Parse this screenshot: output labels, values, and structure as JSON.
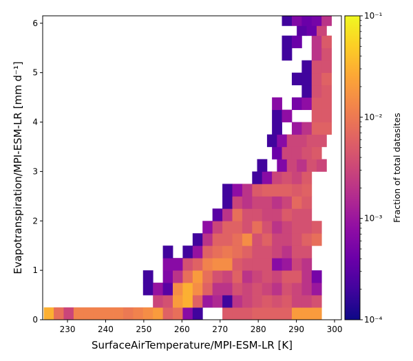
{
  "chart_data": {
    "type": "heatmap",
    "xlabel": "SurfaceAirTemperature/MPI-ESM-LR [K]",
    "ylabel": "Evapotranspiration/MPI-ESM-LR [mm d⁻¹]",
    "colorbar_label": "Fraction of total datasites",
    "xlim": [
      223.5,
      301.8
    ],
    "ylim": [
      0,
      6.15
    ],
    "x_ticks": [
      "230",
      "240",
      "250",
      "260",
      "270",
      "280",
      "290",
      "300"
    ],
    "y_ticks": [
      "0",
      "1",
      "2",
      "3",
      "4",
      "5",
      "6"
    ],
    "colorbar_scale": "log",
    "colorbar_range": [
      0.0001,
      0.1
    ],
    "colorbar_ticks": [
      {
        "value": 0.1,
        "label": "10⁻¹"
      },
      {
        "value": 0.01,
        "label": "10⁻²"
      },
      {
        "value": 0.001,
        "label": "10⁻³"
      },
      {
        "value": 0.0001,
        "label": "10⁻⁴"
      }
    ],
    "colormap": "plasma",
    "bin_width_x": 2.6,
    "bin_height_y": 0.25,
    "rows": [
      {
        "y": 0.125,
        "x0": 223.8,
        "values": [
          0.03,
          0.008,
          0.003,
          0.012,
          0.012,
          0.012,
          0.012,
          0.012,
          0.01,
          0.012,
          0.015,
          0.02,
          0.006,
          0.008,
          0.0007,
          0.0002,
          null,
          null,
          0.005,
          0.005,
          0.005,
          0.006,
          0.006,
          0.006,
          0.006,
          0.02,
          0.02,
          0.02
        ]
      },
      {
        "y": 0.375,
        "x0": 252.4,
        "values": [
          0.003,
          0.004,
          0.02,
          0.03,
          0.006,
          0.001,
          0.0015,
          0.0002,
          0.002,
          0.003,
          0.004,
          0.005,
          0.004,
          0.005,
          0.003,
          0.003,
          0.004
        ]
      },
      {
        "y": 0.625,
        "x0": 249.8,
        "values": [
          0.0002,
          0.0009,
          0.0003,
          0.015,
          0.03,
          0.015,
          0.006,
          0.002,
          0.002,
          0.004,
          0.003,
          0.004,
          0.003,
          0.002,
          0.004,
          0.003,
          0.002,
          0.001
        ]
      },
      {
        "y": 0.875,
        "x0": 249.8,
        "values": [
          0.0002,
          null,
          0.0006,
          0.002,
          0.008,
          0.02,
          0.008,
          0.004,
          0.003,
          0.006,
          0.002,
          0.003,
          0.004,
          0.003,
          0.005,
          0.005,
          0.002,
          0.0005
        ]
      },
      {
        "y": 1.125,
        "x0": 255.0,
        "values": [
          0.0007,
          0.0007,
          0.004,
          0.006,
          0.012,
          0.015,
          0.015,
          0.005,
          0.004,
          0.004,
          0.004,
          0.0007,
          0.001,
          0.003,
          0.002
        ]
      },
      {
        "y": 1.375,
        "x0": 255.0,
        "values": [
          0.0002,
          null,
          0.0002,
          0.0009,
          0.006,
          0.008,
          0.01,
          0.008,
          0.006,
          0.004,
          0.004,
          0.003,
          0.002,
          0.004,
          0.004
        ]
      },
      {
        "y": 1.625,
        "x0": 262.8,
        "values": [
          0.0002,
          0.002,
          0.006,
          0.006,
          0.008,
          0.015,
          0.004,
          0.006,
          0.003,
          0.003,
          0.004,
          0.006,
          0.008
        ]
      },
      {
        "y": 1.875,
        "x0": 265.4,
        "values": [
          0.0008,
          0.003,
          0.006,
          0.006,
          0.004,
          0.008,
          0.004,
          0.002,
          0.003,
          0.004,
          0.004,
          0.005
        ]
      },
      {
        "y": 2.125,
        "x0": 268.0,
        "values": [
          0.0003,
          0.002,
          0.008,
          0.004,
          0.004,
          0.003,
          0.003,
          0.005,
          0.004,
          0.004
        ]
      },
      {
        "y": 2.375,
        "x0": 270.6,
        "values": [
          0.0002,
          0.003,
          0.002,
          0.003,
          0.003,
          0.002,
          0.003,
          0.007,
          0.005
        ]
      },
      {
        "y": 2.625,
        "x0": 270.6,
        "values": [
          0.0002,
          0.0008,
          0.002,
          0.005,
          0.006,
          0.006,
          0.006,
          0.005,
          0.006
        ]
      },
      {
        "y": 2.875,
        "x0": 278.4,
        "values": [
          0.0002,
          0.0007,
          0.003,
          0.004,
          0.003,
          0.005
        ]
      },
      {
        "y": 3.125,
        "x0": 279.7,
        "values": [
          0.0002,
          null,
          0.0006,
          0.003,
          0.002,
          0.004,
          0.003
        ]
      },
      {
        "y": 3.375,
        "x0": 283.6,
        "values": [
          0.0004,
          0.003,
          0.003,
          0.004,
          0.005
        ]
      },
      {
        "y": 3.625,
        "x0": 282.3,
        "values": [
          0.0002,
          0.0007,
          0.003,
          0.003,
          0.004,
          0.004
        ]
      },
      {
        "y": 3.875,
        "x0": 283.6,
        "values": [
          0.0002,
          null,
          0.001,
          0.002,
          0.006,
          0.006
        ]
      },
      {
        "y": 4.125,
        "x0": 283.6,
        "values": [
          0.0002,
          0.0008,
          null,
          null,
          0.005,
          0.005
        ]
      },
      {
        "y": 4.375,
        "x0": 283.6,
        "values": [
          0.0007,
          null,
          0.0005,
          0.0008,
          0.005,
          0.005
        ]
      },
      {
        "y": 4.625,
        "x0": 291.4,
        "values": [
          0.0002,
          0.004,
          0.005
        ]
      },
      {
        "y": 4.875,
        "x0": 288.8,
        "values": [
          0.0002,
          0.0002,
          0.004,
          0.006
        ]
      },
      {
        "y": 5.125,
        "x0": 291.4,
        "values": [
          0.0002,
          0.004,
          0.004
        ]
      },
      {
        "y": 5.375,
        "x0": 286.2,
        "values": [
          0.0002,
          null,
          null,
          0.002,
          0.004
        ]
      },
      {
        "y": 5.625,
        "x0": 286.2,
        "values": [
          0.0002,
          0.0004,
          null,
          0.002,
          0.005
        ]
      },
      {
        "y": 5.875,
        "x0": 290.1,
        "values": [
          0.0003,
          0.0004,
          0.003
        ]
      },
      {
        "y": 6.075,
        "x0": 286.2,
        "values": [
          0.0002,
          0.0006,
          0.0004,
          0.0005,
          0.002
        ]
      }
    ]
  }
}
